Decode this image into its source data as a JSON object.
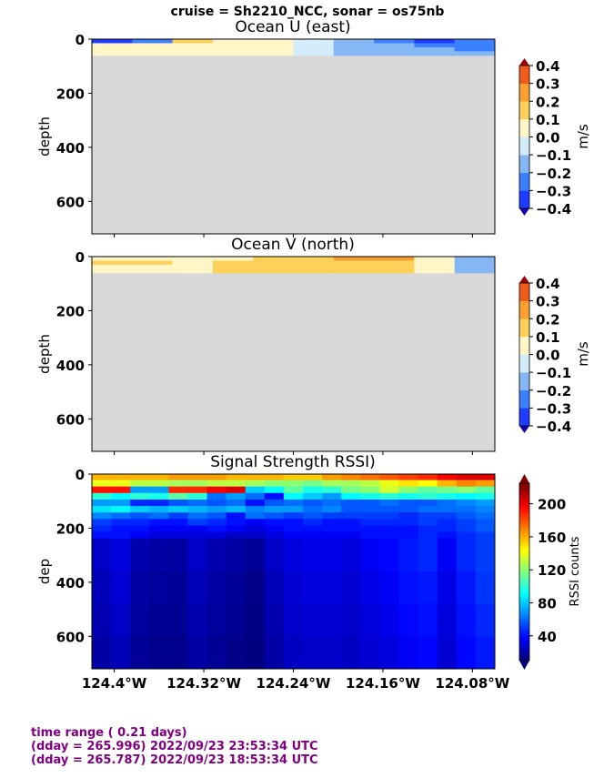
{
  "suptitle": "cruise = Sh2210_NCC,  sonar = os75nb",
  "footer": {
    "line1": "time range ( 0.21 days)",
    "line2": "(dday = 265.996) 2022/09/23 23:53:34 UTC",
    "line3": "(dday = 265.787) 2022/09/23 18:53:34 UTC"
  },
  "colors": {
    "nodata": "#d8d8d8",
    "footer_text": "#800080",
    "velocity_levels": [
      "#2b00d6",
      "#1e3cff",
      "#3a80ff",
      "#86b7f5",
      "#d5ecfb",
      "#fff6c7",
      "#fcd15a",
      "#f9a030",
      "#f05a1a",
      "#c01010"
    ],
    "velocity_under": "#1a00b0",
    "velocity_over": "#a00000"
  },
  "chart_data": [
    {
      "type": "heatmap",
      "title": "Ocean U (east)",
      "ylabel": "depth",
      "xlim": [
        -124.42,
        -124.06
      ],
      "ylim": [
        720,
        0
      ],
      "yticks": [
        0,
        200,
        400,
        600
      ],
      "xtick_values": [
        -124.4,
        -124.32,
        -124.24,
        -124.16,
        -124.08
      ],
      "colorbar": {
        "label": "m/s",
        "levels": [
          -0.4,
          -0.3,
          -0.2,
          -0.1,
          0.0,
          0.1,
          0.2,
          0.3,
          0.4
        ],
        "ticklabels": [
          "0.4",
          "0.3",
          "0.2",
          "0.1",
          "0.0",
          "−0.1",
          "−0.2",
          "−0.3",
          "−0.4"
        ],
        "extend": "both"
      },
      "data_depth_max": 60,
      "x": [
        -124.42,
        -124.38,
        -124.34,
        -124.3,
        -124.26,
        -124.22,
        -124.18,
        -124.14,
        -124.1,
        -124.06
      ],
      "depths": [
        15,
        30,
        45,
        60
      ],
      "values": [
        [
          -0.22,
          -0.12,
          0.12,
          0.05,
          0.04,
          -0.04,
          -0.06,
          -0.12,
          -0.27,
          -0.2
        ],
        [
          0.05,
          0.04,
          0.04,
          0.03,
          0.03,
          -0.03,
          -0.06,
          -0.08,
          -0.12,
          -0.15
        ],
        [
          0.05,
          0.04,
          0.03,
          0.03,
          0.03,
          -0.03,
          -0.05,
          -0.07,
          -0.1,
          -0.12
        ],
        [
          0.05,
          0.04,
          0.03,
          0.03,
          0.03,
          -0.03,
          -0.05,
          -0.06,
          -0.09,
          -0.1
        ]
      ]
    },
    {
      "type": "heatmap",
      "title": "Ocean V (north)",
      "ylabel": "depth",
      "xlim": [
        -124.42,
        -124.06
      ],
      "ylim": [
        720,
        0
      ],
      "yticks": [
        0,
        200,
        400,
        600
      ],
      "colorbar": {
        "label": "m/s",
        "levels": [
          -0.4,
          -0.3,
          -0.2,
          -0.1,
          0.0,
          0.1,
          0.2,
          0.3,
          0.4
        ],
        "ticklabels": [
          "0.4",
          "0.3",
          "0.2",
          "0.1",
          "0.0",
          "−0.1",
          "−0.2",
          "−0.3",
          "−0.4"
        ],
        "extend": "both"
      },
      "data_depth_max": 60,
      "x": [
        -124.42,
        -124.38,
        -124.34,
        -124.3,
        -124.26,
        -124.22,
        -124.18,
        -124.14,
        -124.1,
        -124.06
      ],
      "depths": [
        15,
        30,
        45,
        60
      ],
      "values": [
        [
          0.05,
          0.05,
          0.06,
          0.05,
          0.12,
          0.12,
          0.21,
          0.22,
          0.08,
          -0.05
        ],
        [
          0.11,
          0.1,
          0.08,
          0.12,
          0.13,
          0.13,
          0.16,
          0.14,
          0.06,
          -0.06
        ],
        [
          0.07,
          0.07,
          0.06,
          0.13,
          0.12,
          0.12,
          0.14,
          0.12,
          0.05,
          -0.06
        ],
        [
          0.06,
          0.06,
          0.06,
          0.12,
          0.12,
          0.11,
          0.12,
          0.11,
          0.04,
          -0.05
        ]
      ]
    },
    {
      "type": "heatmap",
      "title": "Signal Strength RSSI)",
      "ylabel": "dep",
      "xlabel": "",
      "xlim": [
        -124.42,
        -124.06
      ],
      "ylim": [
        720,
        0
      ],
      "yticks": [
        0,
        200,
        400,
        600
      ],
      "xticks": [
        "124.4°W",
        "124.32°W",
        "124.24°W",
        "124.16°W",
        "124.08°W"
      ],
      "xtick_values": [
        -124.4,
        -124.32,
        -124.24,
        -124.16,
        -124.08
      ],
      "colorbar": {
        "label": "RSSI counts",
        "ticks": [
          40,
          80,
          120,
          160,
          200
        ],
        "ticklabels": [
          "40",
          "80",
          "120",
          "160",
          "200"
        ],
        "range": [
          10,
          225
        ],
        "extend": "both"
      },
      "x_columns": 21,
      "depth_bin": 24,
      "depths_surface": [
        10,
        34,
        58,
        82,
        106,
        130,
        154,
        178,
        202,
        226
      ],
      "surface_rows": [
        [
          160,
          160,
          160,
          160,
          165,
          165,
          165,
          160,
          160,
          160,
          155,
          155,
          165,
          170,
          175,
          180,
          185,
          190,
          200,
          205,
          205
        ],
        [
          140,
          140,
          130,
          130,
          125,
          125,
          130,
          130,
          125,
          120,
          120,
          115,
          125,
          125,
          130,
          140,
          150,
          145,
          160,
          170,
          165
        ],
        [
          195,
          195,
          70,
          70,
          190,
          190,
          200,
          205,
          80,
          90,
          110,
          95,
          100,
          115,
          120,
          135,
          120,
          110,
          115,
          120,
          110
        ],
        [
          100,
          90,
          100,
          95,
          110,
          100,
          60,
          70,
          60,
          40,
          90,
          80,
          70,
          90,
          95,
          100,
          95,
          100,
          95,
          90,
          95
        ],
        [
          70,
          70,
          45,
          45,
          55,
          60,
          55,
          60,
          40,
          55,
          60,
          55,
          60,
          55,
          55,
          60,
          55,
          55,
          60,
          65,
          70
        ],
        [
          85,
          90,
          80,
          75,
          80,
          75,
          70,
          75,
          65,
          70,
          70,
          60,
          65,
          55,
          55,
          55,
          55,
          60,
          60,
          60,
          65
        ],
        [
          65,
          60,
          55,
          60,
          50,
          60,
          55,
          40,
          60,
          55,
          50,
          55,
          50,
          50,
          50,
          50,
          45,
          50,
          50,
          55,
          60
        ],
        [
          50,
          45,
          45,
          40,
          40,
          50,
          45,
          40,
          35,
          40,
          40,
          45,
          40,
          40,
          45,
          45,
          45,
          50,
          45,
          50,
          55
        ],
        [
          45,
          40,
          40,
          35,
          35,
          35,
          40,
          35,
          30,
          35,
          40,
          40,
          40,
          40,
          40,
          40,
          40,
          45,
          45,
          50,
          55
        ],
        [
          40,
          40,
          35,
          30,
          30,
          30,
          30,
          25,
          25,
          30,
          35,
          35,
          35,
          35,
          40,
          40,
          40,
          45,
          40,
          45,
          50
        ]
      ],
      "deep_profile": [
        [
          25,
          30,
          20,
          18,
          17,
          25,
          20,
          18,
          15,
          25,
          30,
          32,
          32,
          30,
          35,
          38,
          42,
          45,
          35,
          45,
          50
        ],
        [
          22,
          28,
          18,
          16,
          15,
          22,
          18,
          15,
          12,
          22,
          28,
          30,
          30,
          28,
          32,
          35,
          40,
          42,
          32,
          42,
          48
        ],
        [
          20,
          25,
          16,
          14,
          14,
          20,
          16,
          14,
          11,
          20,
          26,
          28,
          28,
          26,
          30,
          33,
          38,
          40,
          30,
          40,
          45
        ],
        [
          18,
          22,
          15,
          13,
          13,
          18,
          15,
          12,
          10,
          18,
          24,
          26,
          26,
          24,
          28,
          30,
          35,
          38,
          28,
          38,
          42
        ]
      ]
    }
  ]
}
